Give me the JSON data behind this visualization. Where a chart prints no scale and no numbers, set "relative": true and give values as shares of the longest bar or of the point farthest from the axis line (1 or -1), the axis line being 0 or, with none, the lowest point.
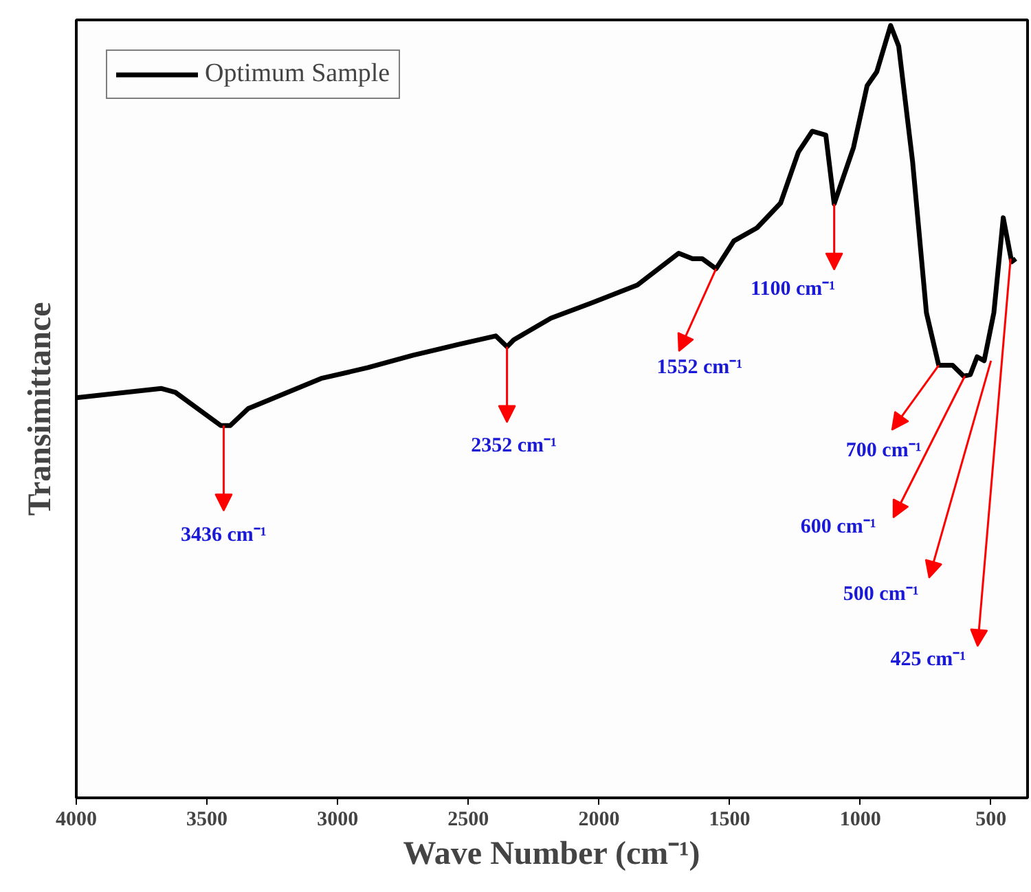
{
  "chart_data": {
    "type": "line",
    "relative": true,
    "xlabel": "Wave Number (cm⁻¹)",
    "ylabel": "Transimittance",
    "xlim": [
      4000,
      360
    ],
    "xticks": [
      4000,
      3500,
      3000,
      2500,
      2000,
      1500,
      1000,
      500
    ],
    "series": [
      {
        "name": "Optimum Sample",
        "color": "#000000",
        "x": [
          4000,
          3674,
          3621,
          3447,
          3436,
          3411,
          3342,
          3063,
          2884,
          2711,
          2537,
          2395,
          2352,
          2326,
          2184,
          2026,
          1853,
          1695,
          1642,
          1605,
          1552,
          1484,
          1395,
          1305,
          1237,
          1184,
          1132,
          1100,
          1026,
          974,
          937,
          884,
          853,
          800,
          747,
          700,
          647,
          605,
          579,
          553,
          526,
          489,
          453,
          421,
          405
        ],
        "values": [
          0.518,
          0.53,
          0.525,
          0.482,
          0.482,
          0.482,
          0.504,
          0.543,
          0.557,
          0.573,
          0.587,
          0.598,
          0.584,
          0.593,
          0.621,
          0.641,
          0.664,
          0.705,
          0.698,
          0.698,
          0.685,
          0.721,
          0.738,
          0.77,
          0.836,
          0.863,
          0.858,
          0.769,
          0.842,
          0.922,
          0.94,
          1.0,
          0.973,
          0.824,
          0.628,
          0.56,
          0.56,
          0.546,
          0.548,
          0.571,
          0.566,
          0.628,
          0.751,
          0.694,
          0.698
        ]
      }
    ],
    "annotations": [
      {
        "text": "3436 cm⁻¹",
        "x": 3436,
        "y": 0.482
      },
      {
        "text": "2352 cm⁻¹",
        "x": 2352,
        "y": 0.584
      },
      {
        "text": "1552 cm⁻¹",
        "x": 1552,
        "y": 0.685
      },
      {
        "text": "1100 cm⁻¹",
        "x": 1100,
        "y": 0.769
      },
      {
        "text": "700 cm⁻¹",
        "x": 700,
        "y": 0.56
      },
      {
        "text": "600 cm⁻¹",
        "x": 600,
        "y": 0.546
      },
      {
        "text": "500 cm⁻¹",
        "x": 500,
        "y": 0.566
      },
      {
        "text": "425 cm⁻¹",
        "x": 425,
        "y": 0.698
      }
    ],
    "legend": "top left",
    "grid": false,
    "marker": "none",
    "line_style": "solid"
  }
}
